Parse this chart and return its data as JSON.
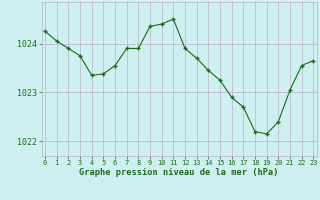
{
  "x": [
    0,
    1,
    2,
    3,
    4,
    5,
    6,
    7,
    8,
    9,
    10,
    11,
    12,
    13,
    14,
    15,
    16,
    17,
    18,
    19,
    20,
    21,
    22,
    23
  ],
  "y": [
    1024.25,
    1024.05,
    1023.9,
    1023.75,
    1023.35,
    1023.38,
    1023.55,
    1023.9,
    1023.9,
    1024.35,
    1024.4,
    1024.5,
    1023.9,
    1023.7,
    1023.45,
    1023.25,
    1022.9,
    1022.7,
    1022.2,
    1022.15,
    1022.4,
    1023.05,
    1023.55,
    1023.65
  ],
  "line_color": "#1a6b1a",
  "marker_color": "#1a6b1a",
  "bg_color": "#cff0f0",
  "grid_color": "#c0b0c8",
  "xlabel": "Graphe pression niveau de la mer (hPa)",
  "xlabel_color": "#1a6b1a",
  "tick_label_color": "#1a6b1a",
  "ylim": [
    1021.7,
    1024.85
  ],
  "yticks": [
    1022,
    1023,
    1024
  ],
  "xticks": [
    0,
    1,
    2,
    3,
    4,
    5,
    6,
    7,
    8,
    9,
    10,
    11,
    12,
    13,
    14,
    15,
    16,
    17,
    18,
    19,
    20,
    21,
    22,
    23
  ],
  "xtick_labels": [
    "0",
    "1",
    "2",
    "3",
    "4",
    "5",
    "6",
    "7",
    "8",
    "9",
    "10",
    "11",
    "12",
    "13",
    "14",
    "15",
    "16",
    "17",
    "18",
    "19",
    "20",
    "21",
    "22",
    "23"
  ]
}
